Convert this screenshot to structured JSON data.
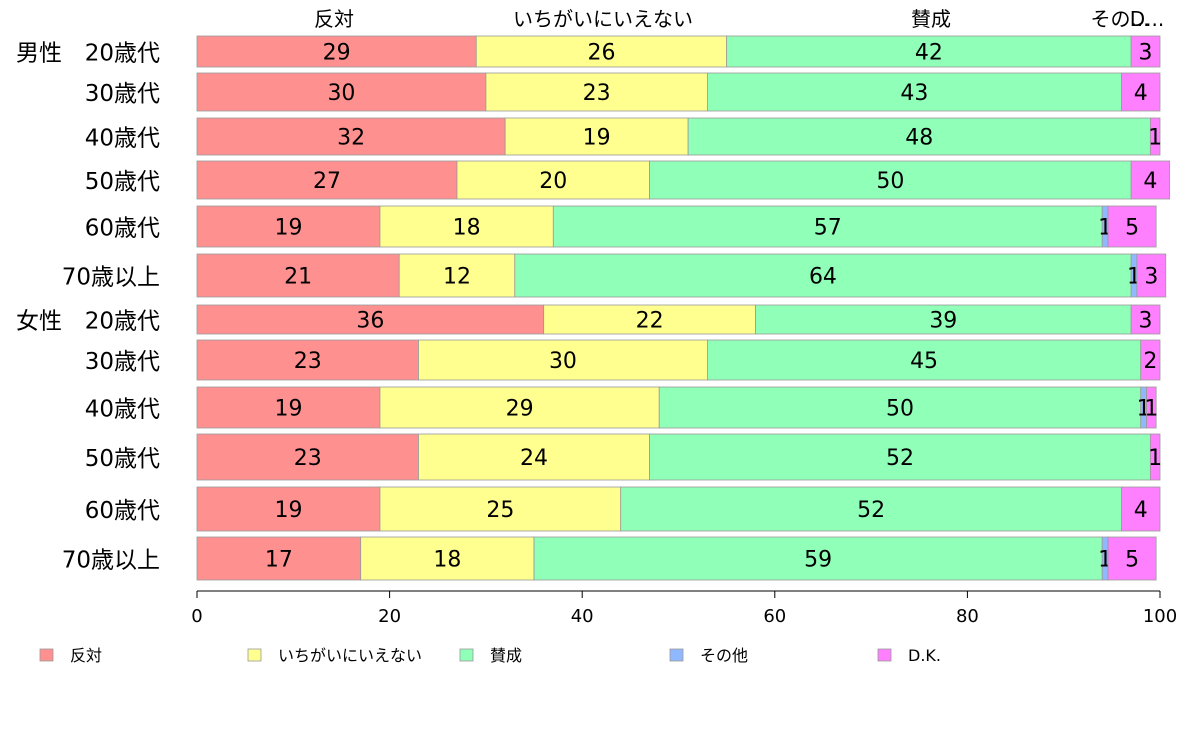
{
  "chart_data": {
    "type": "bar",
    "orientation": "horizontal",
    "stacked": true,
    "group_labels": [
      "男性",
      "女性"
    ],
    "categories": [
      "20歳代",
      "30歳代",
      "40歳代",
      "50歳代",
      "60歳代",
      "70歳以上",
      "20歳代",
      "30歳代",
      "40歳代",
      "50歳代",
      "60歳代",
      "70歳以上"
    ],
    "category_group": [
      0,
      null,
      null,
      null,
      null,
      null,
      1,
      null,
      null,
      null,
      null,
      null
    ],
    "series": [
      {
        "name": "反対",
        "color": "#ff9090",
        "values": [
          29,
          30,
          32,
          27,
          19,
          21,
          36,
          23,
          19,
          23,
          19,
          17
        ],
        "labels": [
          "29",
          "30",
          "32",
          "27",
          "19",
          "21",
          "36",
          "23",
          "19",
          "23",
          "19",
          "17"
        ]
      },
      {
        "name": "いちがいにいえない",
        "color": "#ffff90",
        "values": [
          26,
          23,
          19,
          20,
          18,
          12,
          22,
          30,
          29,
          24,
          25,
          18
        ],
        "labels": [
          "26",
          "23",
          "19",
          "20",
          "18",
          "12",
          "22",
          "30",
          "29",
          "24",
          "25",
          "18"
        ]
      },
      {
        "name": "賛成",
        "color": "#90ffb8",
        "values": [
          42,
          43,
          48,
          50,
          57,
          64,
          39,
          45,
          50,
          52,
          52,
          59
        ],
        "labels": [
          "42",
          "43",
          "48",
          "50",
          "57",
          "64",
          "39",
          "45",
          "50",
          "52",
          "52",
          "59"
        ]
      },
      {
        "name": "その他",
        "color": "#90b8ff",
        "values": [
          0,
          0,
          0,
          0,
          0.6,
          0.6,
          0,
          0,
          0.6,
          0,
          0,
          0.6
        ],
        "labels": [
          "",
          "",
          "",
          "",
          "1",
          "1",
          "",
          "",
          "1",
          "",
          "",
          "1"
        ]
      },
      {
        "name": "D.K.",
        "color": "#ff80ff",
        "values": [
          3,
          4,
          1,
          4,
          5,
          3,
          3,
          2,
          1,
          1,
          4,
          5
        ],
        "labels": [
          "3",
          "4",
          "1",
          "4",
          "5",
          "3",
          "3",
          "2",
          "1",
          "1",
          "4",
          "5"
        ]
      }
    ],
    "top_labels": [
      "反対",
      "いちがいにいえない",
      "賛成",
      "その...",
      "D..."
    ],
    "x_ticks": [
      "0",
      "20",
      "40",
      "60",
      "80",
      "100"
    ],
    "xlim": [
      0,
      100
    ],
    "grid": false,
    "legend_position": "bottom"
  }
}
